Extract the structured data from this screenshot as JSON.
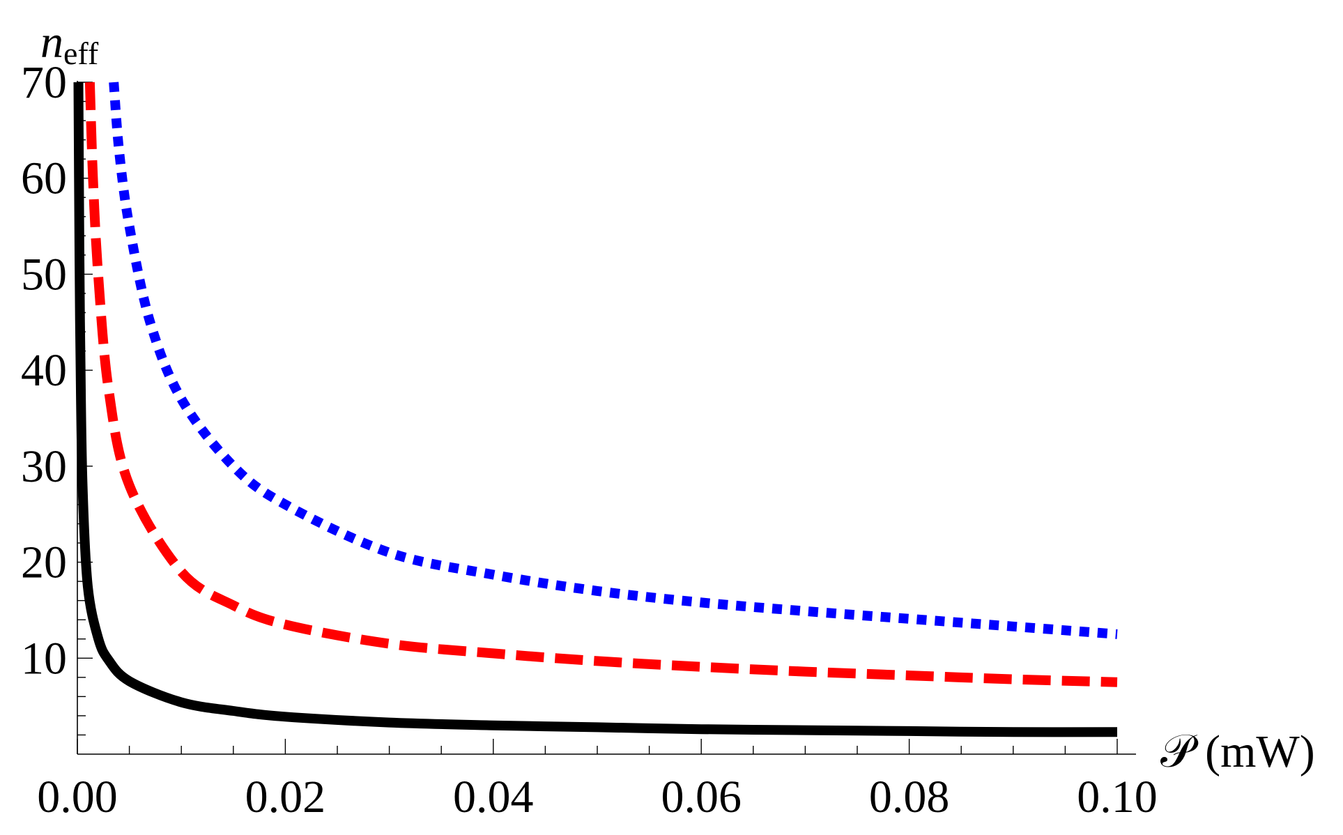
{
  "chart_data": {
    "type": "line",
    "xlabel": "𝒫 (mW)",
    "ylabel": "n",
    "ylabel_sub": "eff",
    "xlim": [
      0,
      0.1
    ],
    "ylim": [
      0,
      70
    ],
    "grid": false,
    "legend": "none",
    "x_ticks": [
      "0.00",
      "0.02",
      "0.04",
      "0.06",
      "0.08",
      "0.10"
    ],
    "y_ticks": [
      "10",
      "20",
      "30",
      "40",
      "50",
      "60",
      "70"
    ],
    "series": [
      {
        "style": "solid",
        "color": "#000000",
        "x": [
          0.0001,
          0.0002,
          0.0003,
          0.0005,
          0.001,
          0.002,
          0.003,
          0.005,
          0.01,
          0.015,
          0.02,
          0.03,
          0.04,
          0.05,
          0.06,
          0.07,
          0.08,
          0.09,
          0.1
        ],
        "y": [
          70,
          52,
          41,
          28,
          17.5,
          12.1,
          9.8,
          7.6,
          5.4,
          4.5,
          3.9,
          3.3,
          3.0,
          2.8,
          2.6,
          2.5,
          2.4,
          2.3,
          2.3
        ]
      },
      {
        "style": "dashed",
        "color": "#ff0000",
        "x": [
          0.0012,
          0.0015,
          0.002,
          0.003,
          0.005,
          0.01,
          0.015,
          0.02,
          0.03,
          0.04,
          0.05,
          0.06,
          0.07,
          0.08,
          0.09,
          0.1
        ],
        "y": [
          70,
          60,
          50,
          38,
          28,
          19,
          15.5,
          13.5,
          11.5,
          10.5,
          9.7,
          9.1,
          8.6,
          8.2,
          7.8,
          7.5
        ]
      },
      {
        "style": "dotted",
        "color": "#0000ff",
        "x": [
          0.0035,
          0.004,
          0.005,
          0.007,
          0.01,
          0.015,
          0.02,
          0.03,
          0.04,
          0.05,
          0.06,
          0.07,
          0.08,
          0.09,
          0.1
        ],
        "y": [
          70,
          63,
          55,
          45,
          37,
          30,
          26,
          21,
          18.7,
          17,
          15.8,
          14.9,
          14.1,
          13.3,
          12.5
        ]
      }
    ]
  }
}
